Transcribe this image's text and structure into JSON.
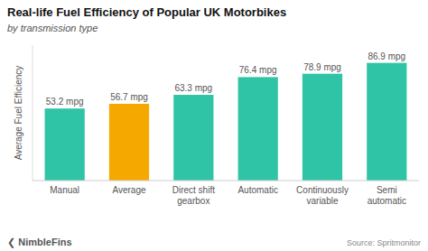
{
  "chart_data": {
    "type": "bar",
    "title": "Real-life Fuel Efficiency of Popular UK Motorbikes",
    "subtitle": "by transmission type",
    "ylabel": "Average Fuel Efficiency",
    "annotations": [
      "Source: Spritmonitor",
      "❮ NimbleFins"
    ],
    "categories": [
      "Manual",
      "Average",
      "Direct shift gearbox",
      "Automatic",
      "Continuously variable",
      "Semi automatic"
    ],
    "values": [
      53.2,
      56.7,
      63.3,
      76.4,
      78.9,
      86.9
    ],
    "value_labels": [
      "53.2 mpg",
      "56.7 mpg",
      "63.3 mpg",
      "76.4 mpg",
      "78.9 mpg",
      "86.9 mpg"
    ],
    "colors": [
      "#2ec4a5",
      "#f5a800",
      "#2ec4a5",
      "#2ec4a5",
      "#2ec4a5",
      "#2ec4a5"
    ],
    "data_labels": true,
    "ylim": [
      0,
      100
    ],
    "tick_labels": "x",
    "grid": false
  }
}
